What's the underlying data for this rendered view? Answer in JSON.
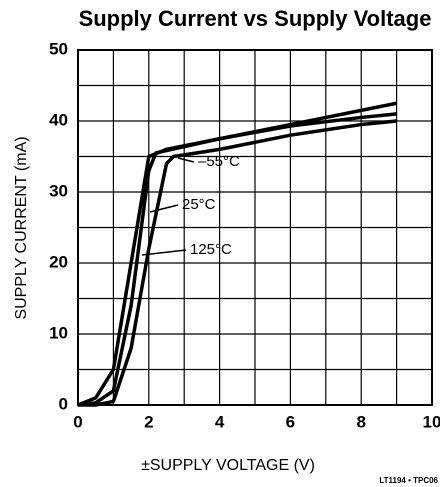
{
  "chart_data": {
    "type": "line",
    "title": "Supply Current vs Supply Voltage",
    "xlabel": "±SUPPLY VOLTAGE (V)",
    "ylabel": "SUPPLY CURRENT (mA)",
    "footnote": "LT1194 • TPC06",
    "xlim": [
      0,
      10
    ],
    "ylim": [
      0,
      50
    ],
    "xticks": [
      0,
      2,
      4,
      6,
      8,
      10
    ],
    "yticks": [
      0,
      10,
      20,
      30,
      40,
      50
    ],
    "xgrid": [
      0,
      1,
      2,
      3,
      4,
      5,
      6,
      7,
      8,
      9,
      10
    ],
    "ygrid": [
      0,
      5,
      10,
      15,
      20,
      25,
      30,
      35,
      40,
      45,
      50
    ],
    "grid": true,
    "series": [
      {
        "name": "125°C",
        "color": "#000000",
        "x": [
          0,
          0.5,
          1.0,
          1.5,
          2.0,
          2.5,
          4,
          6,
          8,
          9
        ],
        "values": [
          0,
          1,
          5,
          20,
          35,
          36,
          37.5,
          39.5,
          41.5,
          42.5
        ]
      },
      {
        "name": "25°C",
        "color": "#000000",
        "x": [
          0,
          0.5,
          1.0,
          1.5,
          2.0,
          2.2,
          4,
          6,
          8,
          9
        ],
        "values": [
          0,
          0.3,
          2,
          14,
          33,
          35.5,
          37.5,
          39.3,
          40.5,
          41
        ]
      },
      {
        "name": "–55°C",
        "color": "#000000",
        "x": [
          0,
          0.5,
          1.0,
          1.5,
          2.0,
          2.5,
          2.7,
          4,
          6,
          8,
          9
        ],
        "values": [
          0,
          0,
          0.5,
          8,
          22,
          34,
          35,
          36,
          38,
          39.5,
          40
        ]
      }
    ]
  }
}
